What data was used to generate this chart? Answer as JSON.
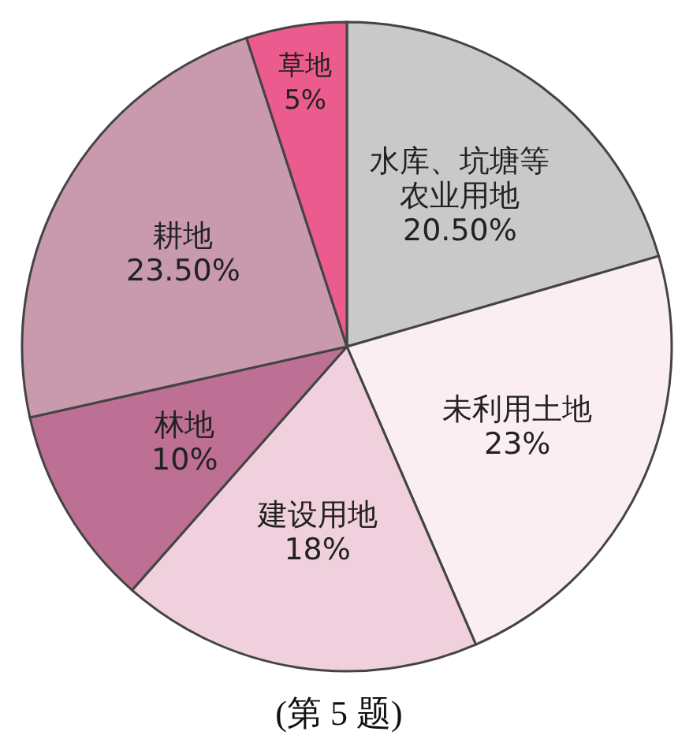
{
  "chart_data": {
    "type": "pie",
    "categories": [
      "水库、坑塘等农业用地",
      "未利用土地",
      "建设用地",
      "林地",
      "耕地",
      "草地"
    ],
    "values": [
      20.5,
      23,
      18,
      10,
      23.5,
      5
    ],
    "value_labels": [
      "20.50%",
      "23%",
      "18%",
      "10%",
      "23.50%",
      "5%"
    ],
    "colors": [
      "#c9c9c9",
      "#fbeef3",
      "#efd0dc",
      "#bd7094",
      "#c99aae",
      "#eb5b8e"
    ],
    "annotations": [
      "(第 5 题)"
    ]
  }
}
